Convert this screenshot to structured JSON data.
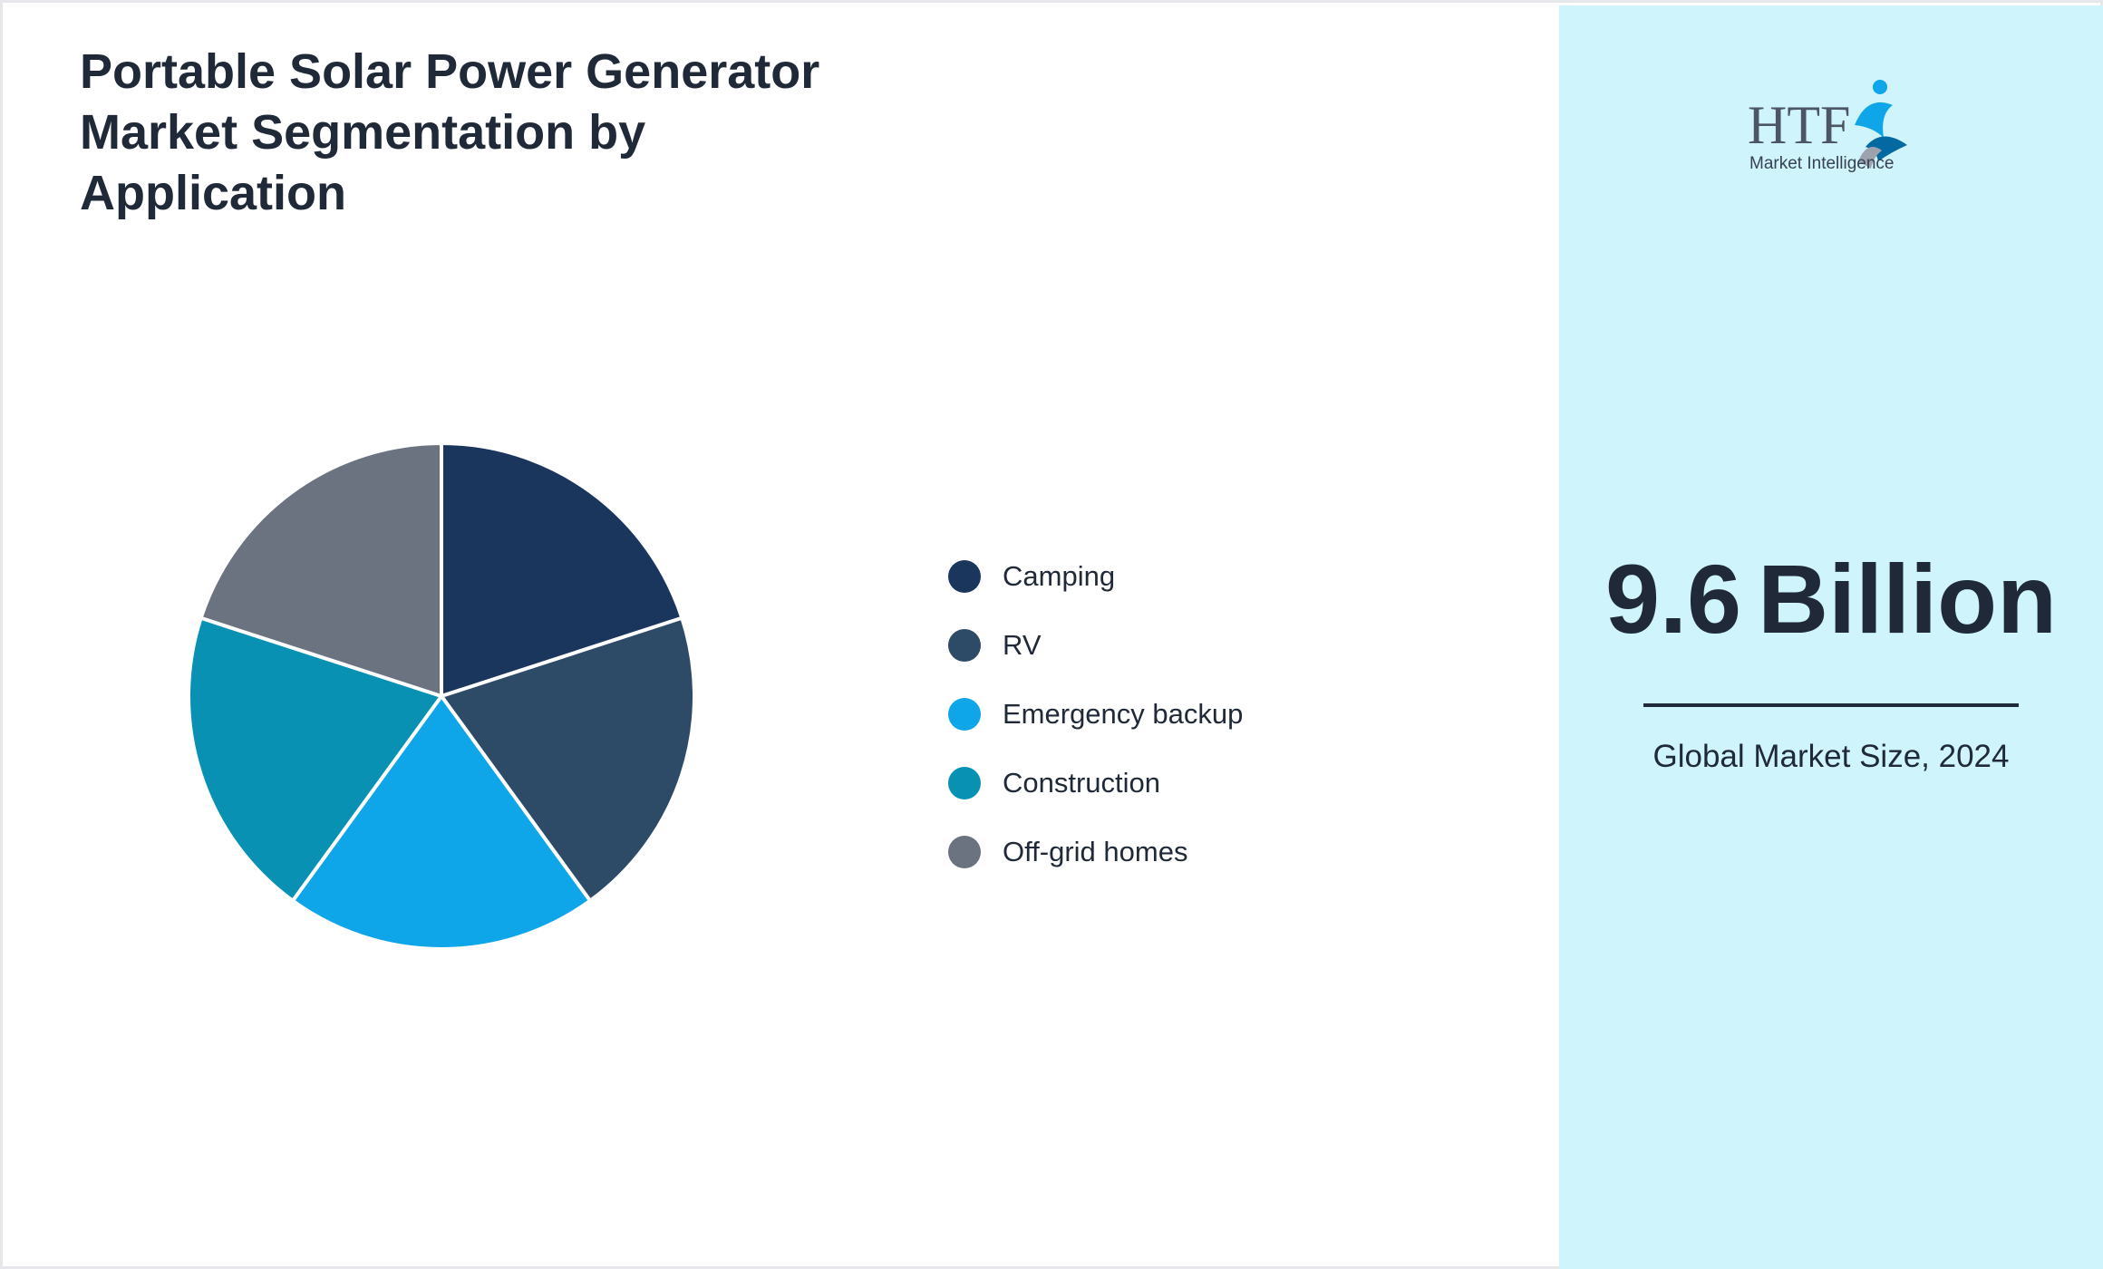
{
  "title": "Portable Solar Power Generator Market Segmentation by Application",
  "chart_data": {
    "type": "pie",
    "title": "Portable Solar Power Generator Market Segmentation by Application",
    "categories": [
      "Camping",
      "RV",
      "Emergency backup",
      "Construction",
      "Off-grid homes"
    ],
    "values": [
      20,
      20,
      20,
      20,
      20
    ],
    "colors": [
      "#1b365d",
      "#2d4a66",
      "#0ea5e9",
      "#0891b2",
      "#6b7280"
    ],
    "legend": "right"
  },
  "market": {
    "value": "9.6",
    "unit": "Billion",
    "caption": "Global Market Size, 2024"
  },
  "logo": {
    "text": "HTF",
    "subtitle": "Market Intelligence"
  }
}
